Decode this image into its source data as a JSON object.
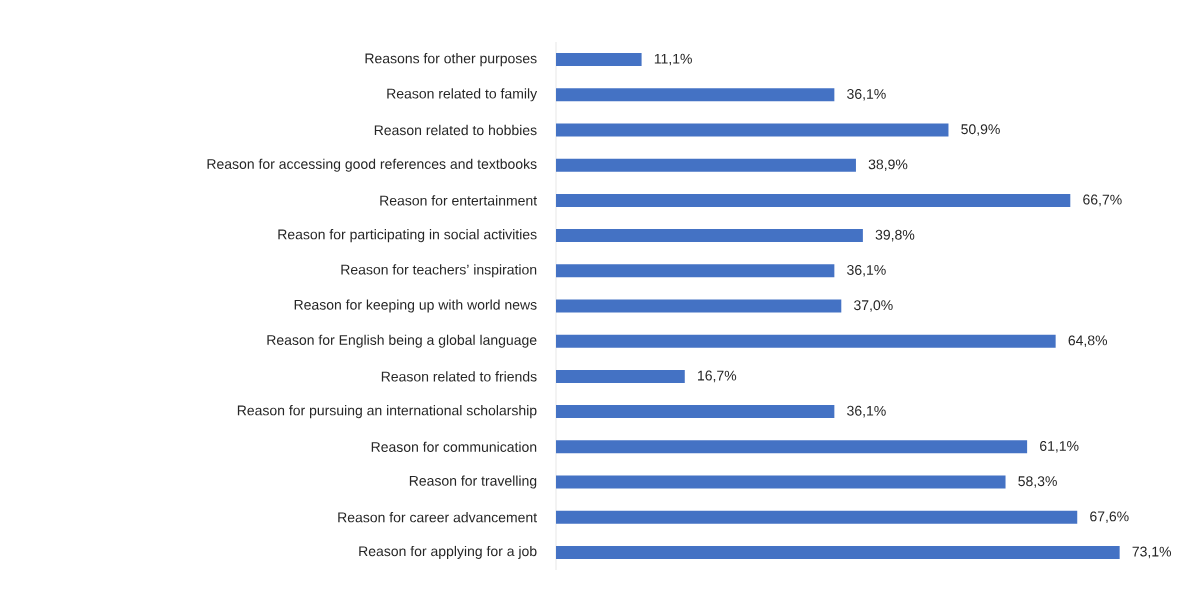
{
  "chart_data": {
    "type": "bar",
    "orientation": "horizontal",
    "color": "#4472c4",
    "categories": [
      "Reasons for other purposes",
      "Reason related to family",
      "Reason related to hobbies",
      "Reason for accessing good references and textbooks",
      "Reason for entertainment",
      "Reason for participating in social activities",
      "Reason for teachers’ inspiration",
      "Reason for keeping up with world news",
      "Reason for English being a global language",
      "Reason related to friends",
      "Reason for pursuing an international scholarship",
      "Reason for communication",
      "Reason for travelling",
      "Reason for career advancement",
      "Reason for applying for a job"
    ],
    "values": [
      11.1,
      36.1,
      50.9,
      38.9,
      66.7,
      39.8,
      36.1,
      37.0,
      64.8,
      16.7,
      36.1,
      61.1,
      58.3,
      67.6,
      73.1
    ],
    "value_labels": [
      "11,1%",
      "36,1%",
      "50,9%",
      "38,9%",
      "66,7%",
      "39,8%",
      "36,1%",
      "37,0%",
      "64,8%",
      "16,7%",
      "36,1%",
      "61,1%",
      "58,3%",
      "67,6%",
      "73,1%"
    ]
  }
}
